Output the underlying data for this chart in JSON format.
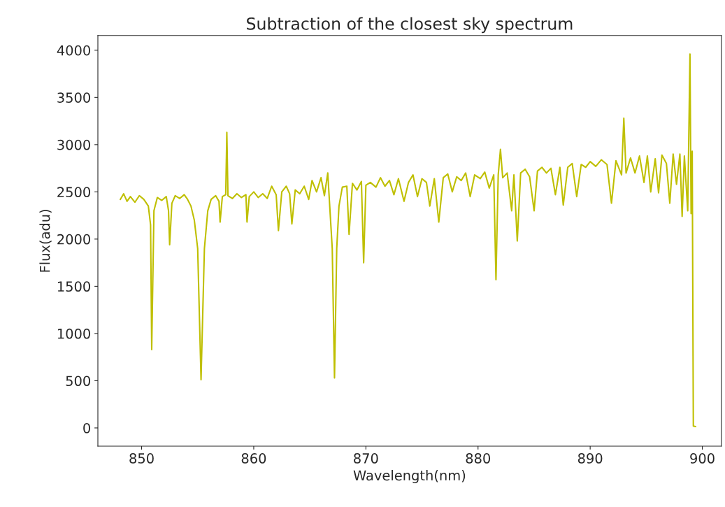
{
  "chart_data": {
    "type": "line",
    "title": "Subtraction of the closest sky spectrum",
    "xlabel": "Wavelength(nm)",
    "ylabel": "Flux(adu)",
    "x": [
      848.1,
      848.4,
      848.7,
      849.0,
      849.4,
      849.8,
      850.2,
      850.6,
      850.8,
      850.9,
      851.1,
      851.4,
      851.8,
      852.2,
      852.4,
      852.5,
      852.7,
      853.0,
      853.4,
      853.8,
      854.1,
      854.4,
      854.7,
      855.0,
      855.3,
      855.6,
      855.9,
      856.2,
      856.6,
      856.9,
      857.0,
      857.2,
      857.5,
      857.6,
      857.7,
      858.1,
      858.5,
      858.9,
      859.3,
      859.4,
      859.6,
      860.0,
      860.4,
      860.8,
      861.2,
      861.6,
      862.0,
      862.2,
      862.5,
      862.9,
      863.2,
      863.4,
      863.7,
      864.1,
      864.5,
      864.9,
      865.2,
      865.6,
      866.0,
      866.3,
      866.6,
      866.8,
      867.0,
      867.2,
      867.4,
      867.6,
      867.9,
      868.3,
      868.5,
      868.8,
      869.2,
      869.6,
      869.8,
      870.0,
      870.4,
      870.9,
      871.3,
      871.7,
      872.1,
      872.5,
      872.9,
      873.4,
      873.8,
      874.2,
      874.6,
      875.0,
      875.4,
      875.7,
      876.1,
      876.5,
      876.9,
      877.3,
      877.7,
      878.1,
      878.5,
      878.9,
      879.3,
      879.7,
      880.2,
      880.6,
      881.0,
      881.4,
      881.6,
      881.8,
      882.0,
      882.2,
      882.6,
      883.0,
      883.2,
      883.5,
      883.8,
      884.2,
      884.6,
      885.0,
      885.3,
      885.7,
      886.1,
      886.5,
      886.9,
      887.3,
      887.6,
      888.0,
      888.4,
      888.8,
      889.2,
      889.6,
      890.0,
      890.5,
      891.0,
      891.5,
      891.9,
      892.3,
      892.8,
      893.0,
      893.2,
      893.6,
      894.0,
      894.4,
      894.8,
      895.1,
      895.4,
      895.8,
      896.1,
      896.4,
      896.8,
      897.1,
      897.4,
      897.7,
      898.0,
      898.2,
      898.4,
      898.7,
      898.9,
      899.0,
      899.1,
      899.2,
      899.4
    ],
    "series": [
      {
        "color": "#bfbf00",
        "values": [
          2420,
          2480,
          2400,
          2450,
          2390,
          2460,
          2420,
          2350,
          2150,
          830,
          2300,
          2440,
          2410,
          2450,
          2300,
          1940,
          2380,
          2460,
          2430,
          2470,
          2420,
          2350,
          2200,
          1900,
          510,
          1900,
          2300,
          2420,
          2460,
          2400,
          2180,
          2450,
          2470,
          3130,
          2460,
          2430,
          2480,
          2440,
          2470,
          2180,
          2450,
          2500,
          2440,
          2480,
          2430,
          2560,
          2470,
          2090,
          2500,
          2560,
          2480,
          2160,
          2520,
          2480,
          2560,
          2420,
          2620,
          2500,
          2650,
          2460,
          2700,
          2300,
          1900,
          530,
          1900,
          2350,
          2550,
          2560,
          2050,
          2590,
          2520,
          2610,
          1750,
          2570,
          2600,
          2550,
          2650,
          2560,
          2620,
          2470,
          2640,
          2400,
          2600,
          2680,
          2450,
          2640,
          2600,
          2350,
          2640,
          2180,
          2650,
          2690,
          2500,
          2660,
          2620,
          2700,
          2450,
          2680,
          2640,
          2710,
          2540,
          2680,
          1570,
          2680,
          2950,
          2650,
          2700,
          2300,
          2680,
          1980,
          2700,
          2740,
          2660,
          2300,
          2720,
          2760,
          2700,
          2750,
          2470,
          2760,
          2360,
          2760,
          2800,
          2450,
          2790,
          2760,
          2820,
          2770,
          2840,
          2790,
          2380,
          2830,
          2680,
          3280,
          2700,
          2860,
          2700,
          2880,
          2600,
          2880,
          2500,
          2850,
          2490,
          2890,
          2800,
          2380,
          2900,
          2580,
          2900,
          2240,
          2880,
          2300,
          3960,
          2270,
          2930,
          20,
          15
        ]
      }
    ],
    "xlim": [
      846.1,
      901.7
    ],
    "ylim": [
      -193,
      4156
    ],
    "xticks": [
      850,
      860,
      870,
      880,
      890,
      900
    ],
    "yticks": [
      0,
      500,
      1000,
      1500,
      2000,
      2500,
      3000,
      3500,
      4000
    ],
    "grid": false,
    "legend": false
  }
}
